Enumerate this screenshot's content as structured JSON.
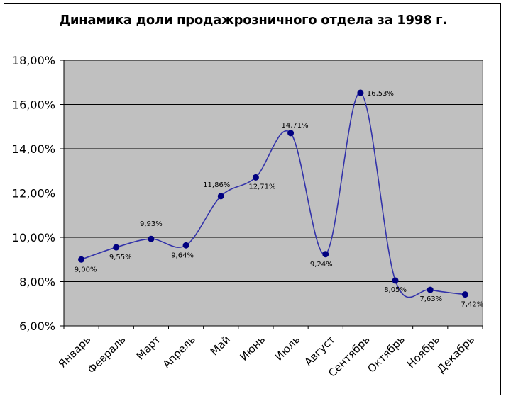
{
  "chart_data": {
    "type": "line",
    "title": "Динамика доли продажрозничного отдела за 1998 г.",
    "categories": [
      "Январь",
      "Февраль",
      "Март",
      "Апрель",
      "Май",
      "Июнь",
      "Июль",
      "Август",
      "Сентябрь",
      "Октябрь",
      "Ноябрь",
      "Декабрь"
    ],
    "values": [
      9.0,
      9.55,
      9.93,
      9.64,
      11.86,
      12.71,
      14.71,
      9.24,
      16.53,
      8.05,
      7.63,
      7.42
    ],
    "data_labels": [
      "9,00%",
      "9,55%",
      "9,93%",
      "9,64%",
      "11,86%",
      "12,71%",
      "14,71%",
      "9,24%",
      "16,53%",
      "8,05%",
      "7,63%",
      "7,42%"
    ],
    "yticks": [
      "6,00%",
      "8,00%",
      "10,00%",
      "12,00%",
      "14,00%",
      "16,00%",
      "18,00%"
    ],
    "ylim": [
      6,
      18
    ],
    "ystep": 2,
    "smooth": true,
    "grid": true,
    "legend": "none",
    "colors": {
      "plot_bg": "#c0c0c0",
      "line": "#3333aa",
      "marker": "#000080",
      "grid": "#000000"
    }
  }
}
